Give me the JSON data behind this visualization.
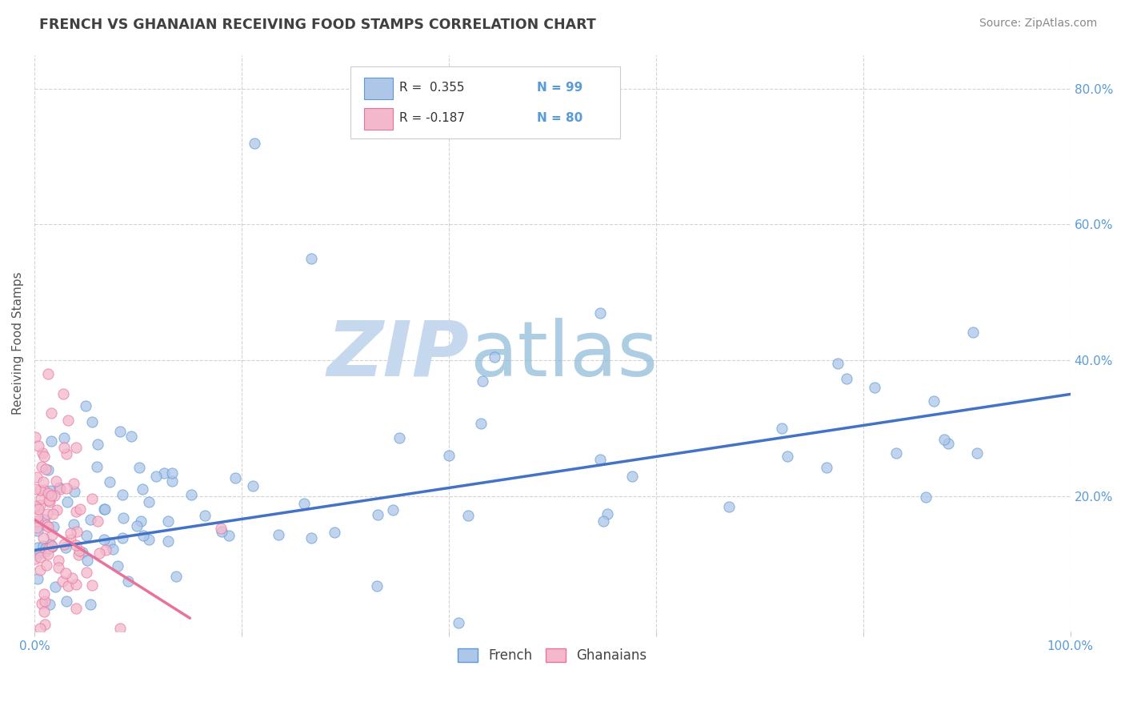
{
  "title": "FRENCH VS GHANAIAN RECEIVING FOOD STAMPS CORRELATION CHART",
  "source": "Source: ZipAtlas.com",
  "ylabel": "Receiving Food Stamps",
  "legend_french": "French",
  "legend_ghanaians": "Ghanaians",
  "r_french": "R =  0.355",
  "n_french": "N = 99",
  "r_ghanaian": "R = -0.187",
  "n_ghanaian": "N = 80",
  "french_color": "#aec6e8",
  "ghanaian_color": "#f4b8cc",
  "french_edge_color": "#5b9bd5",
  "ghanaian_edge_color": "#e8739a",
  "french_line_color": "#4472c4",
  "ghanaian_line_color": "#e8739a",
  "watermark_color": "#c5d8ee",
  "background_color": "#ffffff",
  "grid_color": "#c8c8c8",
  "title_color": "#404040",
  "source_color": "#888888",
  "axis_label_color": "#555555",
  "tick_color": "#5b9bd5",
  "xlim": [
    0,
    100
  ],
  "ylim": [
    0,
    85
  ],
  "french_line_x0": 0,
  "french_line_x1": 100,
  "french_line_y0": 12.0,
  "french_line_y1": 35.0,
  "ghanaian_line_x0": 0,
  "ghanaian_line_x1": 15,
  "ghanaian_line_y0": 16.5,
  "ghanaian_line_y1": 2.0,
  "seed": 12345
}
